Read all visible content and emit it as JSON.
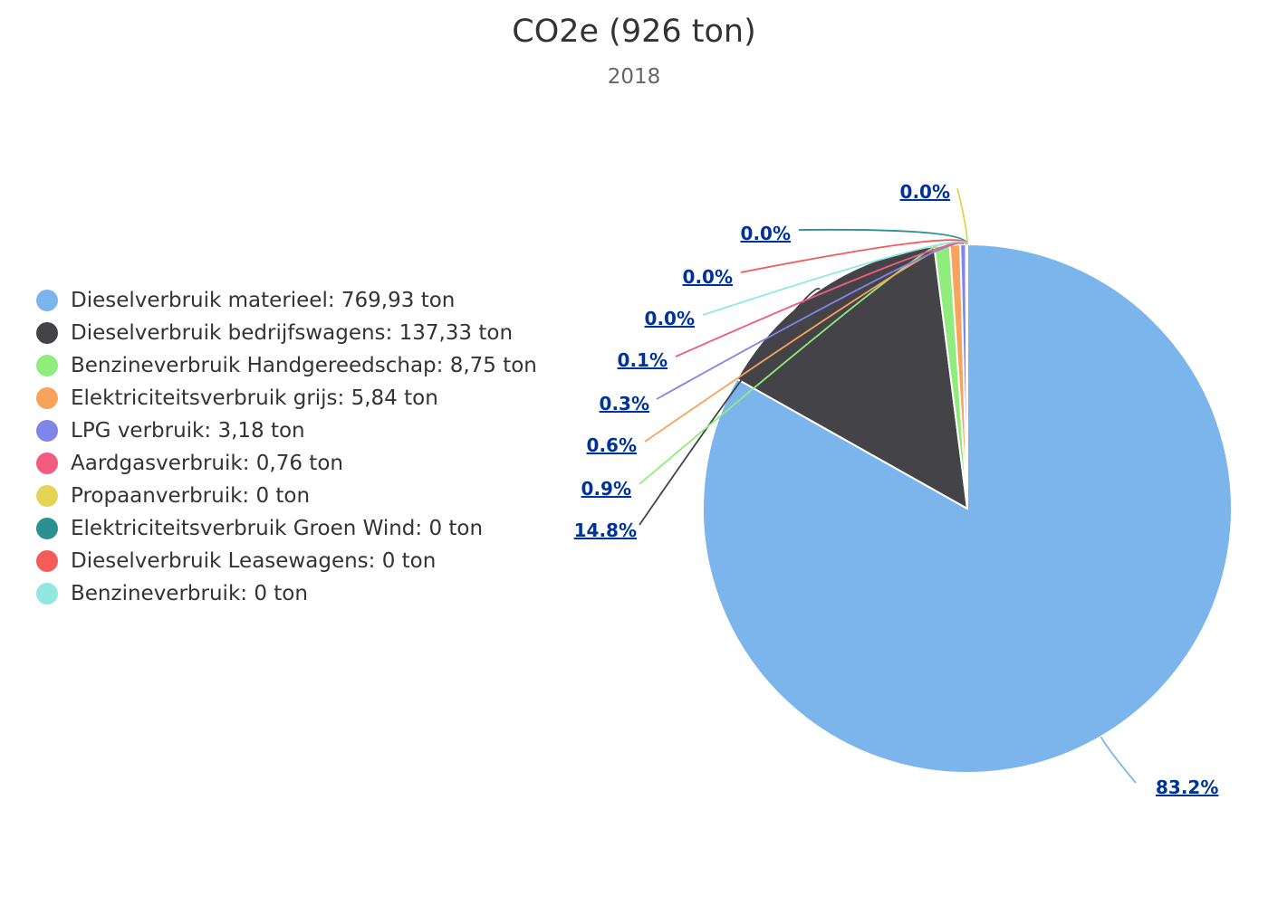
{
  "chart_data": {
    "type": "pie",
    "title": "CO2e (926 ton)",
    "subtitle": "2018",
    "legend_position": "left",
    "series": [
      {
        "name": "Dieselverbruik materieel",
        "legend": "Dieselverbruik materieel: 769,93 ton",
        "value": 769.93,
        "percent_label": "83.2%",
        "color": "#7cb5ec"
      },
      {
        "name": "Dieselverbruik bedrijfswagens",
        "legend": "Dieselverbruik bedrijfswagens: 137,33 ton",
        "value": 137.33,
        "percent_label": "14.8%",
        "color": "#434348"
      },
      {
        "name": "Benzineverbruik Handgereedschap",
        "legend": "Benzineverbruik Handgereedschap: 8,75 ton",
        "value": 8.75,
        "percent_label": "0.9%",
        "color": "#90ed7d"
      },
      {
        "name": "Elektriciteitsverbruik grijs",
        "legend": "Elektriciteitsverbruik grijs: 5,84 ton",
        "value": 5.84,
        "percent_label": "0.6%",
        "color": "#f7a35c"
      },
      {
        "name": "LPG verbruik",
        "legend": "LPG verbruik: 3,18 ton",
        "value": 3.18,
        "percent_label": "0.3%",
        "color": "#8085e9"
      },
      {
        "name": "Aardgasverbruik",
        "legend": "Aardgasverbruik: 0,76 ton",
        "value": 0.76,
        "percent_label": "0.1%",
        "color": "#f15c80"
      },
      {
        "name": "Propaanverbruik",
        "legend": "Propaanverbruik: 0 ton",
        "value": 0,
        "percent_label": "0.0%",
        "color": "#e4d354"
      },
      {
        "name": "Elektriciteitsverbruik Groen Wind",
        "legend": "Elektriciteitsverbruik Groen Wind: 0 ton",
        "value": 0,
        "percent_label": "0.0%",
        "color": "#2b908f"
      },
      {
        "name": "Dieselverbruik Leasewagens",
        "legend": "Dieselverbruik Leasewagens: 0 ton",
        "value": 0,
        "percent_label": "0.0%",
        "color": "#f45b5b"
      },
      {
        "name": "Benzineverbruik",
        "legend": "Benzineverbruik: 0 ton",
        "value": 0,
        "percent_label": "0.0%",
        "color": "#91e8e1"
      }
    ]
  }
}
